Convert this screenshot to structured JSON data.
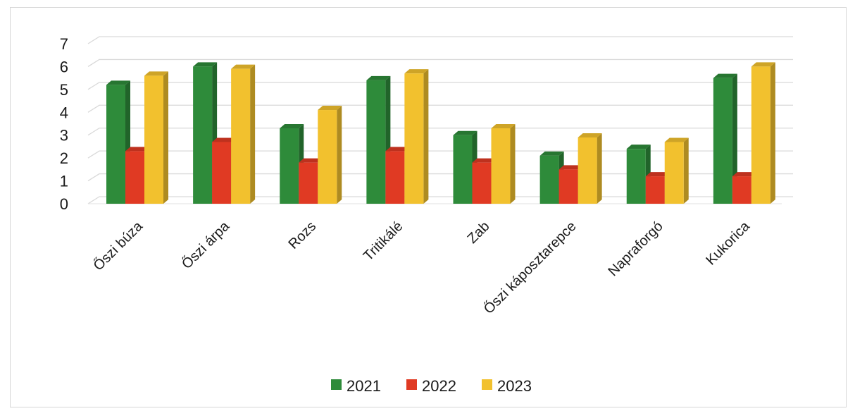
{
  "chart_data": {
    "type": "bar",
    "title": "",
    "xlabel": "",
    "ylabel": "",
    "ylim": [
      0,
      7
    ],
    "yticks": [
      0,
      1,
      2,
      3,
      4,
      5,
      6,
      7
    ],
    "grid": true,
    "legend_position": "bottom",
    "categories": [
      "Őszi búza",
      "Őszi árpa",
      "Rozs",
      "Tritikálé",
      "Zab",
      "Őszi káposztarepce",
      "Napraforgó",
      "Kukorica"
    ],
    "series": [
      {
        "name": "2021",
        "color": "#2e8b3a",
        "values": [
          5.2,
          6.0,
          3.3,
          5.4,
          3.0,
          2.1,
          2.4,
          5.5
        ]
      },
      {
        "name": "2022",
        "color": "#e03a23",
        "values": [
          2.3,
          2.7,
          1.8,
          2.3,
          1.8,
          1.5,
          1.2,
          1.2
        ]
      },
      {
        "name": "2023",
        "color": "#f2c12e",
        "values": [
          5.6,
          5.9,
          4.1,
          5.7,
          3.3,
          2.9,
          2.7,
          6.0
        ]
      }
    ]
  }
}
